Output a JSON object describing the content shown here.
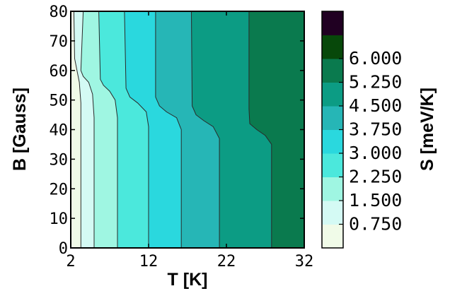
{
  "chart_data": {
    "type": "contour",
    "xlabel": "T [K]",
    "ylabel": "B [Gauss]",
    "xlim": [
      2,
      32
    ],
    "ylim": [
      0,
      80
    ],
    "x_ticks": [
      "2",
      "12",
      "22",
      "32"
    ],
    "y_ticks": [
      "0",
      "10",
      "20",
      "30",
      "40",
      "50",
      "60",
      "70",
      "80"
    ],
    "colorbar": {
      "label": "S [meV/K]",
      "levels": [
        "0.750",
        "1.500",
        "2.250",
        "3.000",
        "3.750",
        "4.500",
        "5.250",
        "6.000"
      ],
      "level_values": [
        0.75,
        1.5,
        2.25,
        3.0,
        3.75,
        4.5,
        5.25,
        6.0
      ],
      "colors": [
        "#f0fbe8",
        "#d4faf4",
        "#9ff6e2",
        "#4be8dc",
        "#2ad8de",
        "#26b6b6",
        "#0c9c84",
        "#0a7a4e",
        "#07480a",
        "#200022"
      ]
    },
    "contours": [
      {
        "level": 0.75,
        "points": [
          [
            3.3,
            0
          ],
          [
            3.3,
            49
          ],
          [
            3.1,
            56
          ],
          [
            2.8,
            60
          ],
          [
            2.5,
            64
          ],
          [
            2.4,
            80
          ]
        ]
      },
      {
        "level": 1.5,
        "points": [
          [
            5.0,
            0
          ],
          [
            5.0,
            44
          ],
          [
            4.8,
            52
          ],
          [
            4.3,
            56
          ],
          [
            3.6,
            58
          ],
          [
            3.3,
            60
          ],
          [
            3.6,
            80
          ]
        ]
      },
      {
        "level": 2.25,
        "points": [
          [
            8.0,
            0
          ],
          [
            8.0,
            44
          ],
          [
            7.7,
            50
          ],
          [
            7.0,
            53
          ],
          [
            6.2,
            55
          ],
          [
            5.8,
            57
          ],
          [
            5.6,
            80
          ]
        ]
      },
      {
        "level": 3.0,
        "points": [
          [
            12.0,
            0
          ],
          [
            12.0,
            41
          ],
          [
            11.7,
            46
          ],
          [
            10.6,
            49
          ],
          [
            9.6,
            51
          ],
          [
            9.1,
            54
          ],
          [
            8.9,
            80
          ]
        ]
      },
      {
        "level": 3.75,
        "points": [
          [
            16.2,
            0
          ],
          [
            16.2,
            40
          ],
          [
            15.6,
            44
          ],
          [
            14.3,
            46
          ],
          [
            13.4,
            48
          ],
          [
            12.9,
            51
          ],
          [
            12.9,
            80
          ]
        ]
      },
      {
        "level": 4.5,
        "points": [
          [
            21.1,
            0
          ],
          [
            21.1,
            37
          ],
          [
            20.3,
            41
          ],
          [
            19.1,
            43
          ],
          [
            18.1,
            45
          ],
          [
            17.6,
            48
          ],
          [
            17.5,
            80
          ]
        ]
      },
      {
        "level": 5.25,
        "points": [
          [
            27.8,
            0
          ],
          [
            27.8,
            35
          ],
          [
            27.0,
            38
          ],
          [
            25.9,
            40
          ],
          [
            25.0,
            42
          ],
          [
            24.9,
            47
          ],
          [
            24.9,
            80
          ]
        ]
      }
    ]
  }
}
